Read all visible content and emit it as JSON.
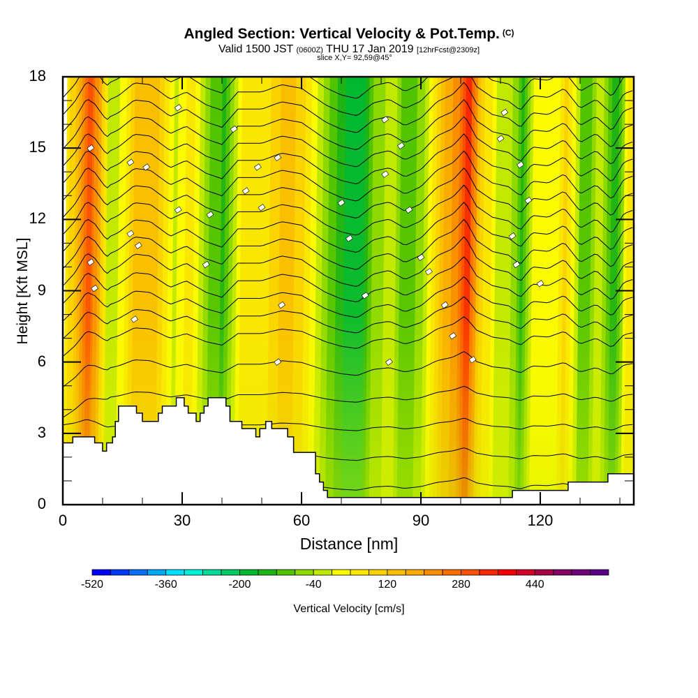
{
  "header": {
    "title": "Angled Section: Vertical Velocity & Pot.Temp.",
    "title_mark": "(C)",
    "valid_prefix": "Valid 1500 JST",
    "valid_utc": "(0600Z)",
    "valid_date": "THU 17 Jan 2019",
    "forecast": "[12hrFcst@2309z]",
    "slice": "slice X,Y= 92,59@45°"
  },
  "chart_data": {
    "type": "heatmap",
    "title": "Angled Section: Vertical Velocity & Pot.Temp.",
    "xlabel": "Distance [nm]",
    "ylabel": "Height [Kft MSL]",
    "xlim": [
      0,
      143.5
    ],
    "ylim": [
      0,
      18
    ],
    "x_ticks": [
      "0",
      "30",
      "60",
      "90",
      "120"
    ],
    "x_tick_values": [
      0,
      30,
      60,
      90,
      120
    ],
    "x_minor_step": 10,
    "y_ticks": [
      "0",
      "3",
      "6",
      "9",
      "12",
      "15",
      "18"
    ],
    "y_tick_values": [
      0,
      3,
      6,
      9,
      12,
      15,
      18
    ],
    "y_minor_step": 1,
    "fill_variable": "Vertical Velocity",
    "contour_variable": "Pot.Temp.",
    "colorbar": {
      "label": "Vertical Velocity [cm/s]",
      "min": -520,
      "max": 600,
      "step": 40,
      "tick_labels": [
        "-520",
        "-360",
        "-200",
        "-40",
        "120",
        "280",
        "440"
      ],
      "tick_values": [
        -520,
        -360,
        -200,
        -40,
        120,
        280,
        440
      ],
      "colors": [
        "#0000f5",
        "#0038fa",
        "#0070fa",
        "#00a8fa",
        "#00e0fa",
        "#00f0d8",
        "#00dc9a",
        "#00cc66",
        "#00b830",
        "#1cb414",
        "#50c400",
        "#8cd800",
        "#c0e800",
        "#fafa00",
        "#fae600",
        "#fad200",
        "#fabe00",
        "#faaa00",
        "#fa8c00",
        "#fa6e00",
        "#fa5000",
        "#fa2800",
        "#f50000",
        "#d20028",
        "#a50046",
        "#850064",
        "#6e0078",
        "#5a0087"
      ]
    },
    "velocity_bands_nm": [
      {
        "x": 0,
        "v": 60
      },
      {
        "x": 3,
        "v": 140
      },
      {
        "x": 6,
        "v": 300
      },
      {
        "x": 8,
        "v": 200
      },
      {
        "x": 11,
        "v": -40
      },
      {
        "x": 14,
        "v": 20
      },
      {
        "x": 18,
        "v": 160
      },
      {
        "x": 22,
        "v": 140
      },
      {
        "x": 27,
        "v": -20
      },
      {
        "x": 31,
        "v": 60
      },
      {
        "x": 36,
        "v": -80
      },
      {
        "x": 40,
        "v": -140
      },
      {
        "x": 44,
        "v": 60
      },
      {
        "x": 50,
        "v": 60
      },
      {
        "x": 55,
        "v": 140
      },
      {
        "x": 60,
        "v": 100
      },
      {
        "x": 66,
        "v": -80
      },
      {
        "x": 70,
        "v": -160
      },
      {
        "x": 74,
        "v": -200
      },
      {
        "x": 78,
        "v": -60
      },
      {
        "x": 82,
        "v": -20
      },
      {
        "x": 86,
        "v": -120
      },
      {
        "x": 90,
        "v": -40
      },
      {
        "x": 94,
        "v": 140
      },
      {
        "x": 98,
        "v": 220
      },
      {
        "x": 101,
        "v": 360
      },
      {
        "x": 104,
        "v": 120
      },
      {
        "x": 108,
        "v": 0
      },
      {
        "x": 112,
        "v": -40
      },
      {
        "x": 115,
        "v": -140
      },
      {
        "x": 118,
        "v": 20
      },
      {
        "x": 122,
        "v": 0
      },
      {
        "x": 126,
        "v": 100
      },
      {
        "x": 130,
        "v": -120
      },
      {
        "x": 134,
        "v": -20
      },
      {
        "x": 138,
        "v": -180
      },
      {
        "x": 141,
        "v": 40
      },
      {
        "x": 143.5,
        "v": 80
      }
    ],
    "terrain_kft": [
      [
        0,
        2.6
      ],
      [
        2.5,
        2.85
      ],
      [
        8,
        2.6
      ],
      [
        10,
        2.25
      ],
      [
        11,
        2.6
      ],
      [
        12.5,
        2.85
      ],
      [
        13.2,
        3.5
      ],
      [
        14,
        4.15
      ],
      [
        18.5,
        3.85
      ],
      [
        20,
        3.5
      ],
      [
        24,
        3.85
      ],
      [
        25,
        4.15
      ],
      [
        28.5,
        4.5
      ],
      [
        30.5,
        4.15
      ],
      [
        31.5,
        3.85
      ],
      [
        33.5,
        3.5
      ],
      [
        34.5,
        3.85
      ],
      [
        35.5,
        4.15
      ],
      [
        36.5,
        4.5
      ],
      [
        41,
        4.15
      ],
      [
        42,
        3.5
      ],
      [
        45,
        3.2
      ],
      [
        48.5,
        2.85
      ],
      [
        49.5,
        3.2
      ],
      [
        51,
        3.5
      ],
      [
        52.5,
        3.2
      ],
      [
        56.5,
        2.85
      ],
      [
        58,
        2.2
      ],
      [
        63.5,
        1.3
      ],
      [
        64.5,
        0.95
      ],
      [
        65.5,
        0.6
      ],
      [
        66.5,
        0.3
      ],
      [
        113,
        0.6
      ],
      [
        127,
        0.95
      ],
      [
        137,
        1.3
      ],
      [
        143.5,
        1.3
      ]
    ]
  }
}
